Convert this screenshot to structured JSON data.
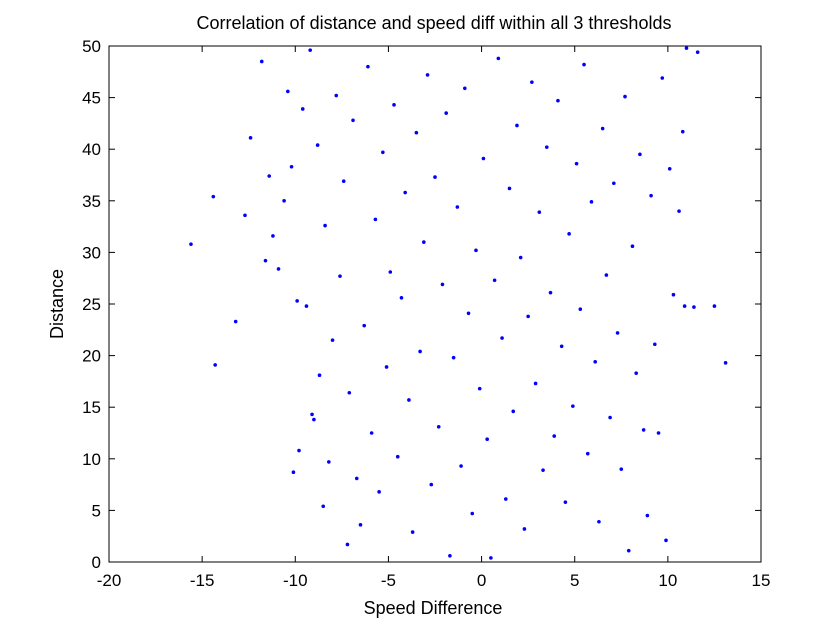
{
  "chart_data": {
    "type": "scatter",
    "title": "Correlation of distance and speed diff within all 3 thresholds",
    "xlabel": "Speed Difference",
    "ylabel": "Distance",
    "xlim": [
      -20,
      15
    ],
    "ylim": [
      0,
      50
    ],
    "xticks": [
      "-20",
      "-15",
      "-10",
      "-5",
      "0",
      "5",
      "10",
      "15"
    ],
    "yticks": [
      "0",
      "5",
      "10",
      "15",
      "20",
      "25",
      "30",
      "35",
      "40",
      "45",
      "50"
    ],
    "grid": false,
    "marker_color": "#0000ff",
    "series": [
      {
        "points": [
          [
            -15.6,
            30.8
          ],
          [
            -14.4,
            35.4
          ],
          [
            -14.3,
            19.1
          ],
          [
            -13.2,
            23.3
          ],
          [
            -12.7,
            33.6
          ],
          [
            -12.4,
            41.1
          ],
          [
            -11.8,
            48.5
          ],
          [
            -11.6,
            29.2
          ],
          [
            -11.4,
            37.4
          ],
          [
            -11.2,
            31.6
          ],
          [
            -10.9,
            28.4
          ],
          [
            -10.6,
            35.0
          ],
          [
            -10.4,
            45.6
          ],
          [
            -10.2,
            38.3
          ],
          [
            -10.1,
            8.7
          ],
          [
            -9.9,
            25.3
          ],
          [
            -9.8,
            10.8
          ],
          [
            -9.6,
            43.9
          ],
          [
            -9.4,
            24.8
          ],
          [
            -9.2,
            49.6
          ],
          [
            -9.1,
            14.3
          ],
          [
            -9.0,
            13.8
          ],
          [
            -8.8,
            40.4
          ],
          [
            -8.7,
            18.1
          ],
          [
            -8.5,
            5.4
          ],
          [
            -8.4,
            32.6
          ],
          [
            -8.2,
            9.7
          ],
          [
            -8.0,
            21.5
          ],
          [
            -7.8,
            45.2
          ],
          [
            -7.6,
            27.7
          ],
          [
            -7.4,
            36.9
          ],
          [
            -7.2,
            1.7
          ],
          [
            -7.1,
            16.4
          ],
          [
            -6.9,
            42.8
          ],
          [
            -6.7,
            8.1
          ],
          [
            -6.5,
            3.6
          ],
          [
            -6.3,
            22.9
          ],
          [
            -6.1,
            48.0
          ],
          [
            -5.9,
            12.5
          ],
          [
            -5.7,
            33.2
          ],
          [
            -5.5,
            6.8
          ],
          [
            -5.3,
            39.7
          ],
          [
            -5.1,
            18.9
          ],
          [
            -4.9,
            28.1
          ],
          [
            -4.7,
            44.3
          ],
          [
            -4.5,
            10.2
          ],
          [
            -4.3,
            25.6
          ],
          [
            -4.1,
            35.8
          ],
          [
            -3.9,
            15.7
          ],
          [
            -3.7,
            2.9
          ],
          [
            -3.5,
            41.6
          ],
          [
            -3.3,
            20.4
          ],
          [
            -3.1,
            31.0
          ],
          [
            -2.9,
            47.2
          ],
          [
            -2.7,
            7.5
          ],
          [
            -2.5,
            37.3
          ],
          [
            -2.3,
            13.1
          ],
          [
            -2.1,
            26.9
          ],
          [
            -1.9,
            43.5
          ],
          [
            -1.7,
            0.6
          ],
          [
            -1.5,
            19.8
          ],
          [
            -1.3,
            34.4
          ],
          [
            -1.1,
            9.3
          ],
          [
            -0.9,
            45.9
          ],
          [
            -0.7,
            24.1
          ],
          [
            -0.5,
            4.7
          ],
          [
            -0.3,
            30.2
          ],
          [
            -0.1,
            16.8
          ],
          [
            0.1,
            39.1
          ],
          [
            0.3,
            11.9
          ],
          [
            0.5,
            0.4
          ],
          [
            0.7,
            27.3
          ],
          [
            0.9,
            48.8
          ],
          [
            1.1,
            21.7
          ],
          [
            1.3,
            6.1
          ],
          [
            1.5,
            36.2
          ],
          [
            1.7,
            14.6
          ],
          [
            1.9,
            42.3
          ],
          [
            2.1,
            29.5
          ],
          [
            2.3,
            3.2
          ],
          [
            2.5,
            23.8
          ],
          [
            2.7,
            46.5
          ],
          [
            2.9,
            17.3
          ],
          [
            3.1,
            33.9
          ],
          [
            3.3,
            8.9
          ],
          [
            3.5,
            40.2
          ],
          [
            3.7,
            26.1
          ],
          [
            3.9,
            12.2
          ],
          [
            4.1,
            44.7
          ],
          [
            4.3,
            20.9
          ],
          [
            4.5,
            5.8
          ],
          [
            4.7,
            31.8
          ],
          [
            4.9,
            15.1
          ],
          [
            5.1,
            38.6
          ],
          [
            5.3,
            24.5
          ],
          [
            5.5,
            48.2
          ],
          [
            5.7,
            10.5
          ],
          [
            5.9,
            34.9
          ],
          [
            6.1,
            19.4
          ],
          [
            6.3,
            3.9
          ],
          [
            6.5,
            42.0
          ],
          [
            6.7,
            27.8
          ],
          [
            6.9,
            14.0
          ],
          [
            7.1,
            36.7
          ],
          [
            7.3,
            22.2
          ],
          [
            7.5,
            9.0
          ],
          [
            7.7,
            45.1
          ],
          [
            7.9,
            1.1
          ],
          [
            8.1,
            30.6
          ],
          [
            8.3,
            18.3
          ],
          [
            8.5,
            39.5
          ],
          [
            8.7,
            12.8
          ],
          [
            8.9,
            4.5
          ],
          [
            9.1,
            35.5
          ],
          [
            9.3,
            21.1
          ],
          [
            9.5,
            12.5
          ],
          [
            9.7,
            46.9
          ],
          [
            9.9,
            2.1
          ],
          [
            10.1,
            38.1
          ],
          [
            10.3,
            25.9
          ],
          [
            10.6,
            34.0
          ],
          [
            10.8,
            41.7
          ],
          [
            10.9,
            24.8
          ],
          [
            11.0,
            49.8
          ],
          [
            11.4,
            24.7
          ],
          [
            11.6,
            49.4
          ],
          [
            12.5,
            24.8
          ],
          [
            13.1,
            19.3
          ]
        ]
      }
    ]
  }
}
